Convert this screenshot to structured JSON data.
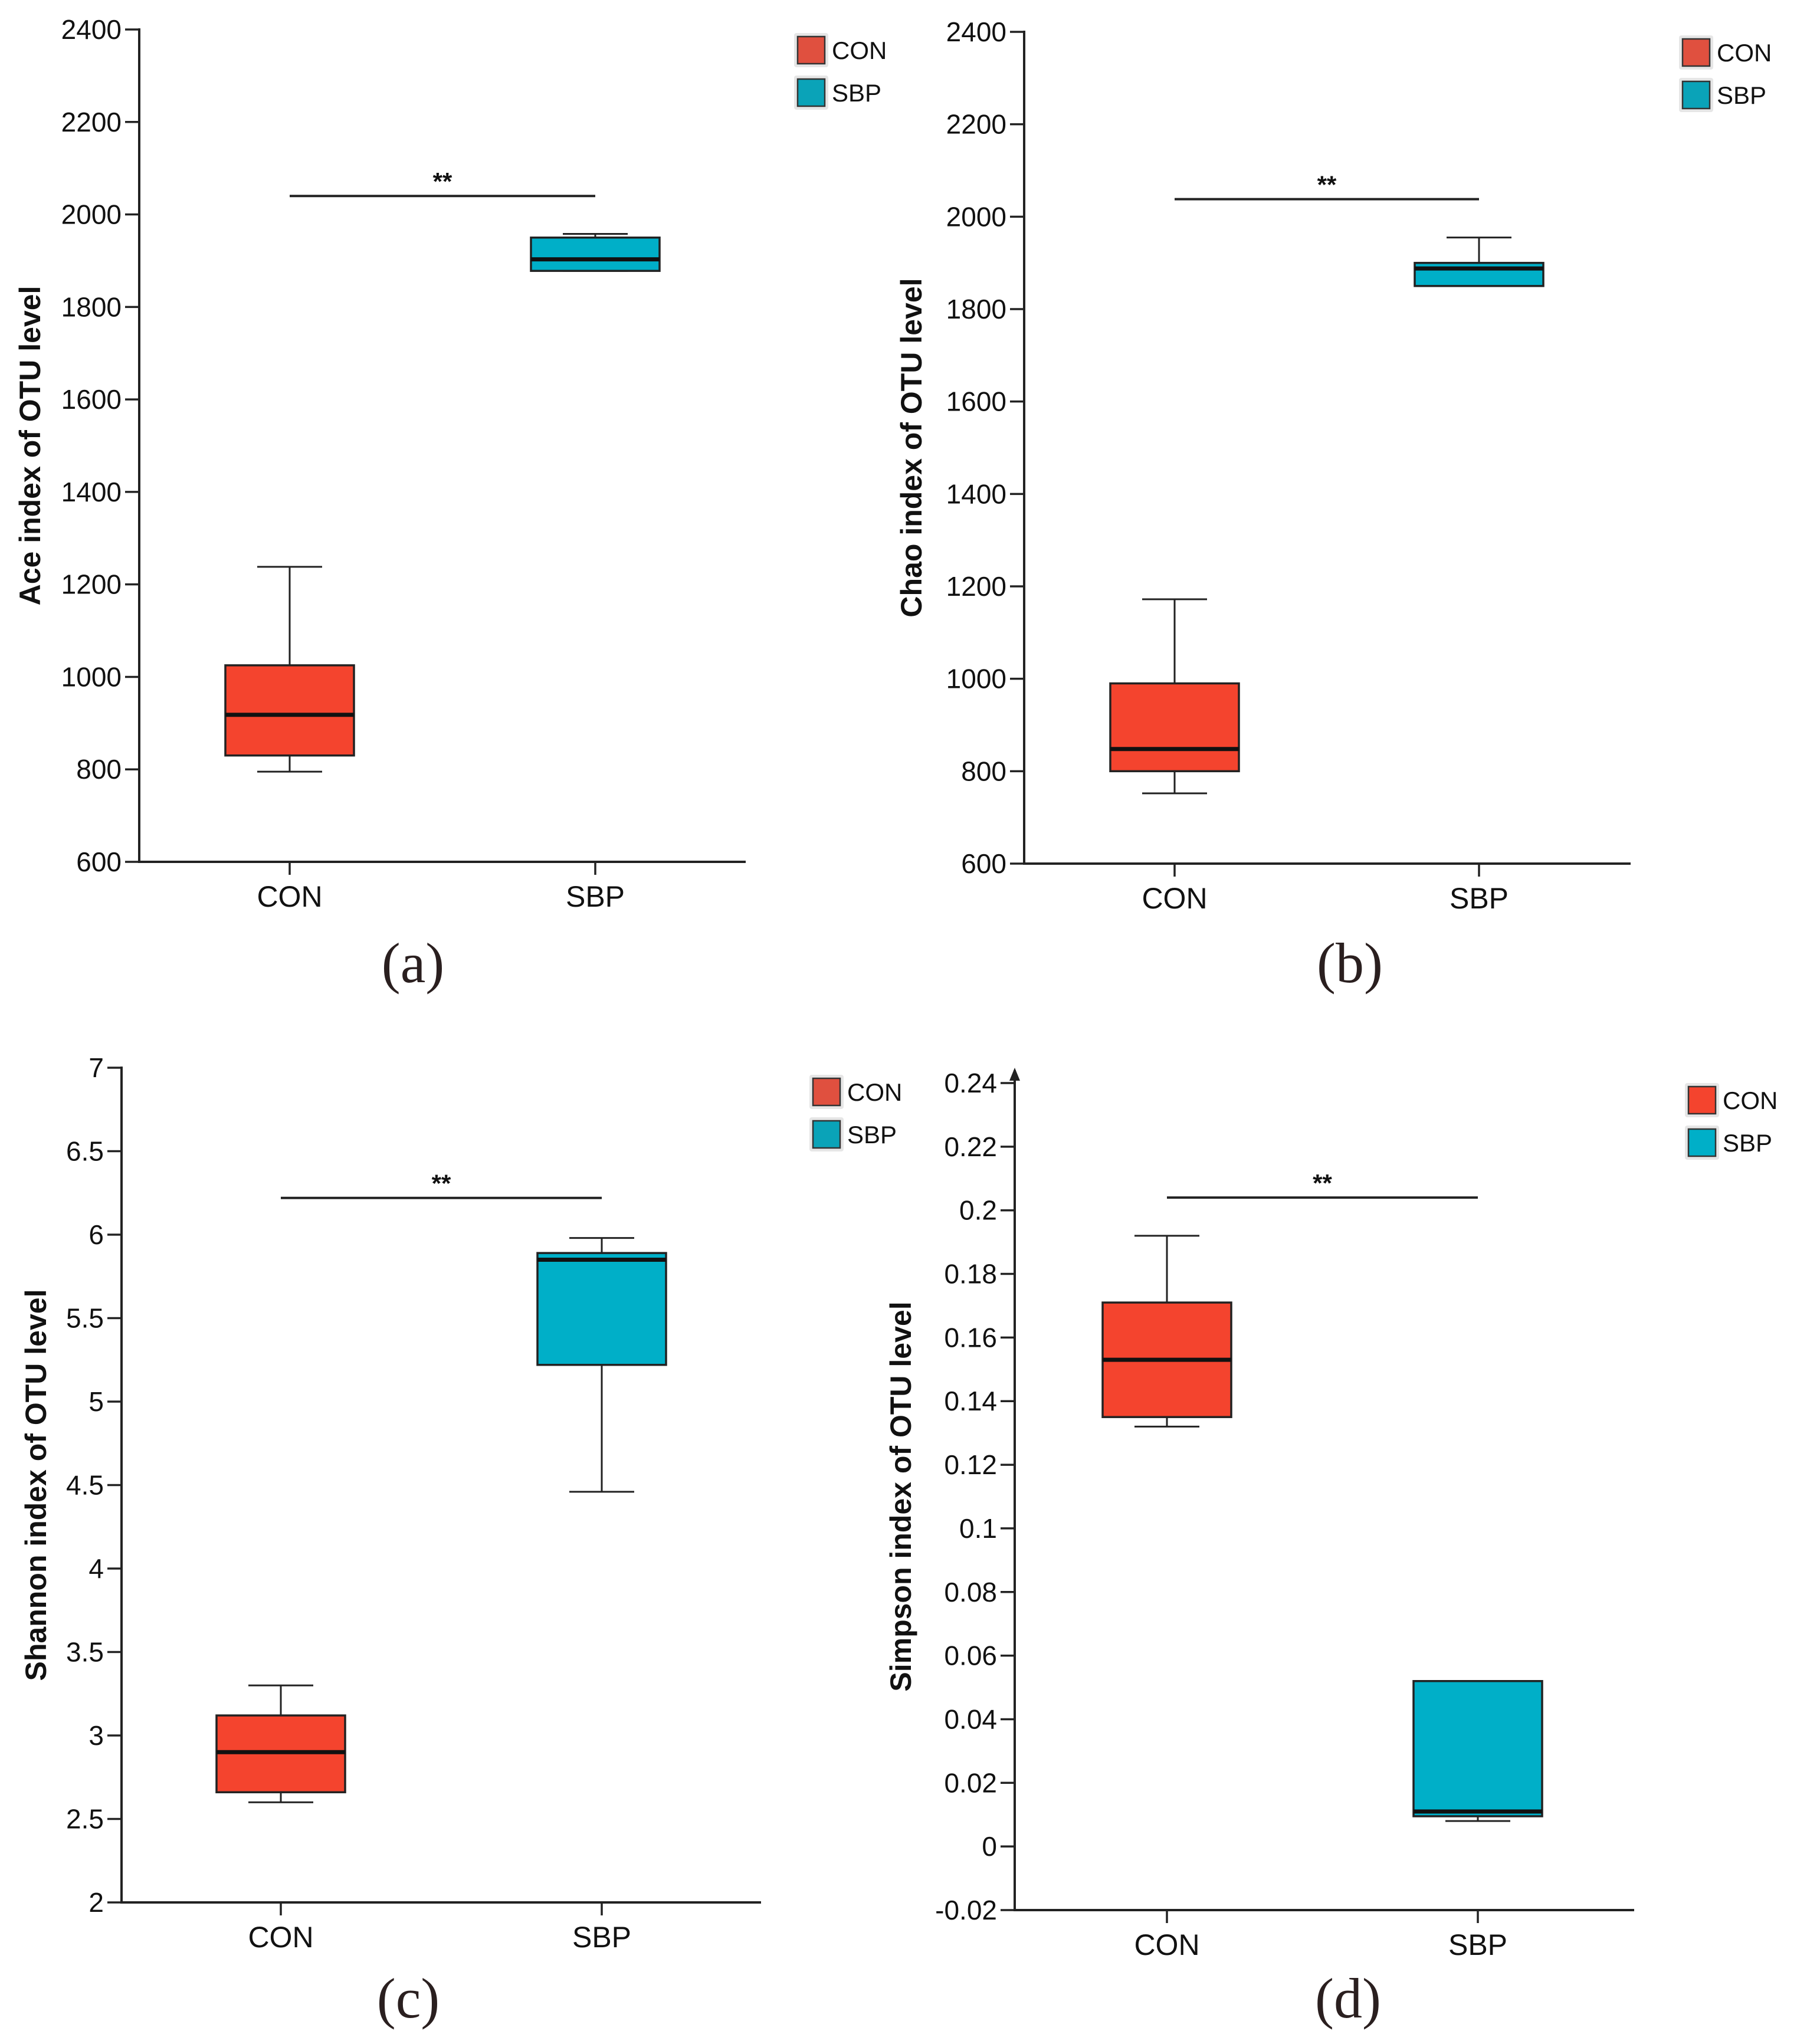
{
  "chart_data": [
    {
      "type": "box",
      "panel_label": "(a)",
      "ylabel": "Ace index of OTU level",
      "categories": [
        "CON",
        "SBP"
      ],
      "ylim": [
        600,
        2400
      ],
      "yticks": [
        600,
        800,
        1000,
        1200,
        1400,
        1600,
        1800,
        2000,
        2200,
        2400
      ],
      "ytick_labels": [
        "600",
        "800",
        "1000",
        "1200",
        "1400",
        "1600",
        "1800",
        "2000",
        "2200",
        "2400"
      ],
      "series": [
        {
          "name": "CON",
          "color": "#f4442e",
          "min": 795,
          "q1": 830,
          "median": 918,
          "q3": 1025,
          "max": 1238
        },
        {
          "name": "SBP",
          "color": "#00afc8",
          "min": 1878,
          "q1": 1878,
          "median": 1903,
          "q3": 1950,
          "max": 1958
        }
      ],
      "legend": [
        {
          "label": "CON",
          "color": "#e0503f"
        },
        {
          "label": "SBP",
          "color": "#0aa3b8"
        }
      ],
      "significance": {
        "text": "**",
        "y": 2040
      }
    },
    {
      "type": "box",
      "panel_label": "(b)",
      "ylabel": "Chao index of OTU level",
      "categories": [
        "CON",
        "SBP"
      ],
      "ylim": [
        600,
        2400
      ],
      "yticks": [
        600,
        800,
        1000,
        1200,
        1400,
        1600,
        1800,
        2000,
        2200,
        2400
      ],
      "ytick_labels": [
        "600",
        "800",
        "1000",
        "1200",
        "1400",
        "1600",
        "1800",
        "2000",
        "2200",
        "2400"
      ],
      "series": [
        {
          "name": "CON",
          "color": "#f4442e",
          "min": 752,
          "q1": 800,
          "median": 848,
          "q3": 990,
          "max": 1172
        },
        {
          "name": "SBP",
          "color": "#00afc8",
          "min": 1850,
          "q1": 1850,
          "median": 1888,
          "q3": 1900,
          "max": 1955
        }
      ],
      "legend": [
        {
          "label": "CON",
          "color": "#e0503f"
        },
        {
          "label": "SBP",
          "color": "#0aa3b8"
        }
      ],
      "significance": {
        "text": "**",
        "y": 2038
      }
    },
    {
      "type": "box",
      "panel_label": "(c)",
      "ylabel": "Shannon index of OTU level",
      "categories": [
        "CON",
        "SBP"
      ],
      "ylim": [
        2,
        7
      ],
      "yticks": [
        2,
        2.5,
        3,
        3.5,
        4,
        4.5,
        5,
        5.5,
        6,
        6.5,
        7
      ],
      "ytick_labels": [
        "2",
        "2.5",
        "3",
        "3.5",
        "4",
        "4.5",
        "5",
        "5.5",
        "6",
        "6.5",
        "7"
      ],
      "series": [
        {
          "name": "CON",
          "color": "#f4442e",
          "min": 2.6,
          "q1": 2.66,
          "median": 2.9,
          "q3": 3.12,
          "max": 3.3
        },
        {
          "name": "SBP",
          "color": "#00afc8",
          "min": 4.46,
          "q1": 5.22,
          "median": 5.85,
          "q3": 5.89,
          "max": 5.98
        }
      ],
      "legend": [
        {
          "label": "CON",
          "color": "#e0503f"
        },
        {
          "label": "SBP",
          "color": "#0aa3b8"
        }
      ],
      "significance": {
        "text": "**",
        "y": 6.22
      }
    },
    {
      "type": "box",
      "panel_label": "(d)",
      "ylabel": "Simpson index of OTU level",
      "categories": [
        "CON",
        "SBP"
      ],
      "ylim": [
        -0.02,
        0.24
      ],
      "yticks": [
        -0.02,
        0,
        0.02,
        0.04,
        0.06,
        0.08,
        0.1,
        0.12,
        0.14,
        0.16,
        0.18,
        0.2,
        0.22,
        0.24
      ],
      "ytick_labels": [
        "-0.02",
        "0",
        "0.02",
        "0.04",
        "0.06",
        "0.08",
        "0.1",
        "0.12",
        "0.14",
        "0.16",
        "0.18",
        "0.2",
        "0.22",
        "0.24"
      ],
      "series": [
        {
          "name": "CON",
          "color": "#f4442e",
          "min": 0.132,
          "q1": 0.135,
          "median": 0.153,
          "q3": 0.171,
          "max": 0.192
        },
        {
          "name": "SBP",
          "color": "#00afc8",
          "min": 0.008,
          "q1": 0.0095,
          "median": 0.011,
          "q3": 0.052,
          "max": 0.052
        }
      ],
      "legend": [
        {
          "label": "CON",
          "color": "#f4442e"
        },
        {
          "label": "SBP",
          "color": "#00afc8"
        }
      ],
      "significance": {
        "text": "**",
        "y": 0.204
      }
    }
  ]
}
